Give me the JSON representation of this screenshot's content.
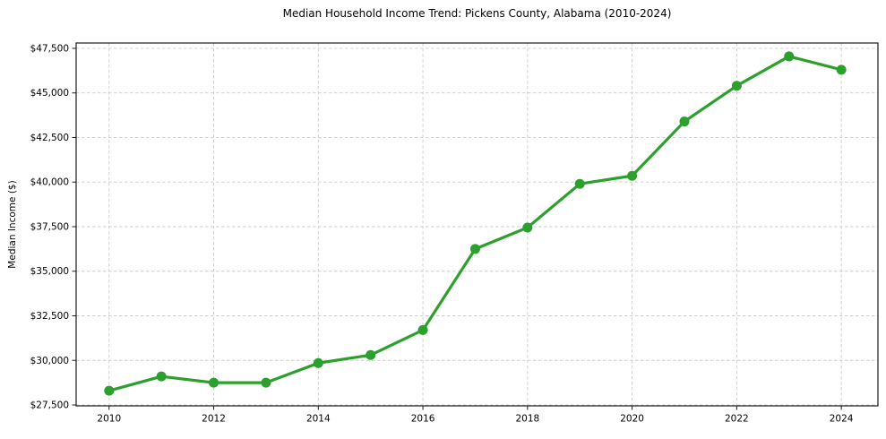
{
  "chart_data": {
    "type": "line",
    "title": "Median Household Income Trend: Pickens County, Alabama (2010-2024)",
    "xlabel": "",
    "ylabel": "Median Income ($)",
    "x": [
      2010,
      2011,
      2012,
      2013,
      2014,
      2015,
      2016,
      2017,
      2018,
      2019,
      2020,
      2021,
      2022,
      2023,
      2024
    ],
    "values": [
      28300,
      29100,
      28750,
      28750,
      29850,
      30300,
      31700,
      36250,
      37450,
      39900,
      40350,
      43400,
      45400,
      47050,
      46300
    ],
    "xlim": [
      2009.37,
      2024.7
    ],
    "ylim": [
      27450,
      47800
    ],
    "x_ticks": [
      {
        "value": 2010,
        "label": "2010"
      },
      {
        "value": 2012,
        "label": "2012"
      },
      {
        "value": 2014,
        "label": "2014"
      },
      {
        "value": 2016,
        "label": "2016"
      },
      {
        "value": 2018,
        "label": "2018"
      },
      {
        "value": 2020,
        "label": "2020"
      },
      {
        "value": 2022,
        "label": "2022"
      },
      {
        "value": 2024,
        "label": "2024"
      }
    ],
    "y_ticks": [
      {
        "value": 27500,
        "label": "$27,500"
      },
      {
        "value": 30000,
        "label": "$30,000"
      },
      {
        "value": 32500,
        "label": "$32,500"
      },
      {
        "value": 35000,
        "label": "$35,000"
      },
      {
        "value": 37500,
        "label": "$37,500"
      },
      {
        "value": 40000,
        "label": "$40,000"
      },
      {
        "value": 42500,
        "label": "$42,500"
      },
      {
        "value": 45000,
        "label": "$45,000"
      },
      {
        "value": 47500,
        "label": "$47,500"
      }
    ],
    "grid": true,
    "legend_position": "none",
    "line_color": "#2ca02c",
    "marker": "circle",
    "grid_color": "#cccccc",
    "axis_color": "#1a1a1a",
    "text_color": "#000000",
    "background_color": "#ffffff"
  }
}
